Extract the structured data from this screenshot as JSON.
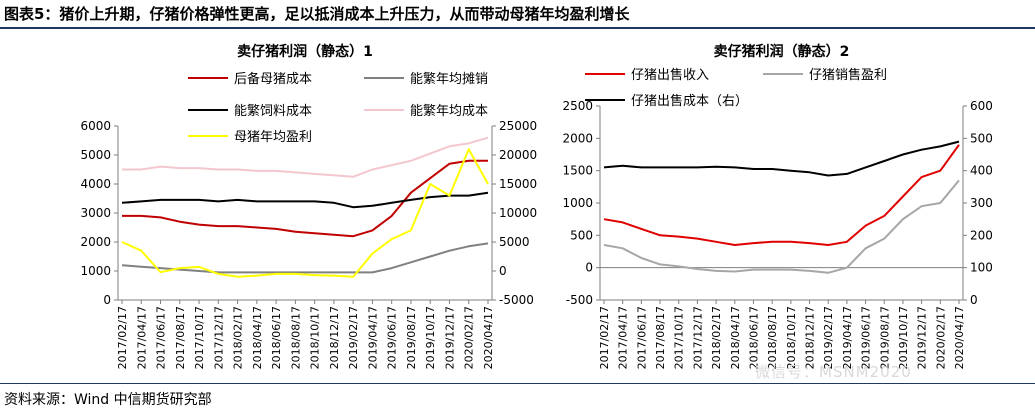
{
  "figure": {
    "title": "图表5：猪价上升期，仔猪价格弹性更高，足以抵消成本上升压力，从而带动母猪年均盈利增长",
    "source": "资料来源：Wind 中信期货研究部",
    "watermark": "微信号：MSNM2020"
  },
  "chart_data": [
    {
      "type": "line",
      "title": "卖仔猪利润（静态）1",
      "x_tick_labels": [
        "2017/02/17",
        "2017/04/17",
        "2017/06/17",
        "2017/08/17",
        "2017/10/17",
        "2017/12/17",
        "2018/02/17",
        "2018/04/17",
        "2018/06/17",
        "2018/08/17",
        "2018/10/17",
        "2018/12/17",
        "2019/02/17",
        "2019/04/17",
        "2019/06/17",
        "2019/08/17",
        "2019/10/17",
        "2019/12/17",
        "2020/02/17",
        "2020/04/17"
      ],
      "y_left": {
        "range": [
          0,
          6000
        ],
        "ticks": [
          0,
          1000,
          2000,
          3000,
          4000,
          5000,
          6000
        ]
      },
      "y_right": {
        "range": [
          -5000,
          25000
        ],
        "ticks": [
          -5000,
          0,
          5000,
          10000,
          15000,
          20000,
          25000
        ]
      },
      "grid": false,
      "legend_position": "top",
      "series": [
        {
          "name": "后备母猪成本",
          "axis": "left",
          "color": "#c00000",
          "values": [
            2900,
            2900,
            2850,
            2700,
            2600,
            2550,
            2550,
            2500,
            2450,
            2350,
            2300,
            2250,
            2200,
            2400,
            2900,
            3700,
            4200,
            4700,
            4800,
            4800
          ]
        },
        {
          "name": "能繁年均摊销",
          "axis": "left",
          "color": "#808080",
          "values": [
            1200,
            1150,
            1100,
            1050,
            1000,
            950,
            950,
            950,
            950,
            950,
            950,
            950,
            950,
            950,
            1100,
            1300,
            1500,
            1700,
            1850,
            1950
          ]
        },
        {
          "name": "能繁饲料成本",
          "axis": "left",
          "color": "#000000",
          "values": [
            3350,
            3400,
            3450,
            3450,
            3450,
            3400,
            3450,
            3400,
            3400,
            3400,
            3400,
            3350,
            3200,
            3250,
            3350,
            3450,
            3550,
            3600,
            3600,
            3700
          ]
        },
        {
          "name": "能繁年均成本",
          "axis": "left",
          "color": "#f4c7cf",
          "values": [
            4500,
            4500,
            4600,
            4550,
            4550,
            4500,
            4500,
            4450,
            4450,
            4400,
            4350,
            4300,
            4250,
            4500,
            4650,
            4800,
            5050,
            5300,
            5400,
            5600
          ]
        },
        {
          "name": "母猪年均盈利",
          "axis": "right",
          "color": "#ffff00",
          "values": [
            5000,
            3500,
            -200,
            500,
            700,
            -500,
            -1000,
            -800,
            -500,
            -500,
            -700,
            -800,
            -1000,
            3000,
            5500,
            7000,
            15000,
            13000,
            21000,
            15000
          ]
        }
      ]
    },
    {
      "type": "line",
      "title": "卖仔猪利润（静态）2",
      "x_tick_labels": [
        "2017/02/17",
        "2017/04/17",
        "2017/06/17",
        "2017/08/17",
        "2017/10/17",
        "2017/12/17",
        "2018/02/17",
        "2018/04/17",
        "2018/06/17",
        "2018/08/17",
        "2018/10/17",
        "2018/12/17",
        "2019/02/17",
        "2019/04/17",
        "2019/06/17",
        "2019/08/17",
        "2019/10/17",
        "2019/12/17",
        "2020/02/17",
        "2020/04/17"
      ],
      "y_left": {
        "range": [
          -500,
          2500
        ],
        "ticks": [
          -500,
          0,
          500,
          1000,
          1500,
          2000,
          2500
        ]
      },
      "y_right": {
        "range": [
          0,
          600
        ],
        "ticks": [
          0,
          100,
          200,
          300,
          400,
          500,
          600
        ]
      },
      "grid": false,
      "legend_position": "top",
      "series": [
        {
          "name": "仔猪出售收入",
          "axis": "left",
          "color": "#e00000",
          "values": [
            750,
            700,
            600,
            500,
            480,
            450,
            400,
            350,
            380,
            400,
            400,
            380,
            350,
            400,
            650,
            800,
            1100,
            1400,
            1500,
            1900
          ]
        },
        {
          "name": "仔猪销售盈利",
          "axis": "left",
          "color": "#a6a6a6",
          "values": [
            350,
            300,
            150,
            50,
            20,
            -20,
            -50,
            -60,
            -30,
            -30,
            -30,
            -50,
            -80,
            0,
            300,
            450,
            750,
            950,
            1000,
            1350
          ]
        },
        {
          "name": "仔猪出售成本（右）",
          "axis": "right",
          "color": "#000000",
          "values": [
            410,
            415,
            410,
            410,
            410,
            410,
            412,
            410,
            405,
            405,
            400,
            395,
            385,
            390,
            410,
            430,
            450,
            465,
            475,
            490
          ]
        }
      ]
    }
  ]
}
